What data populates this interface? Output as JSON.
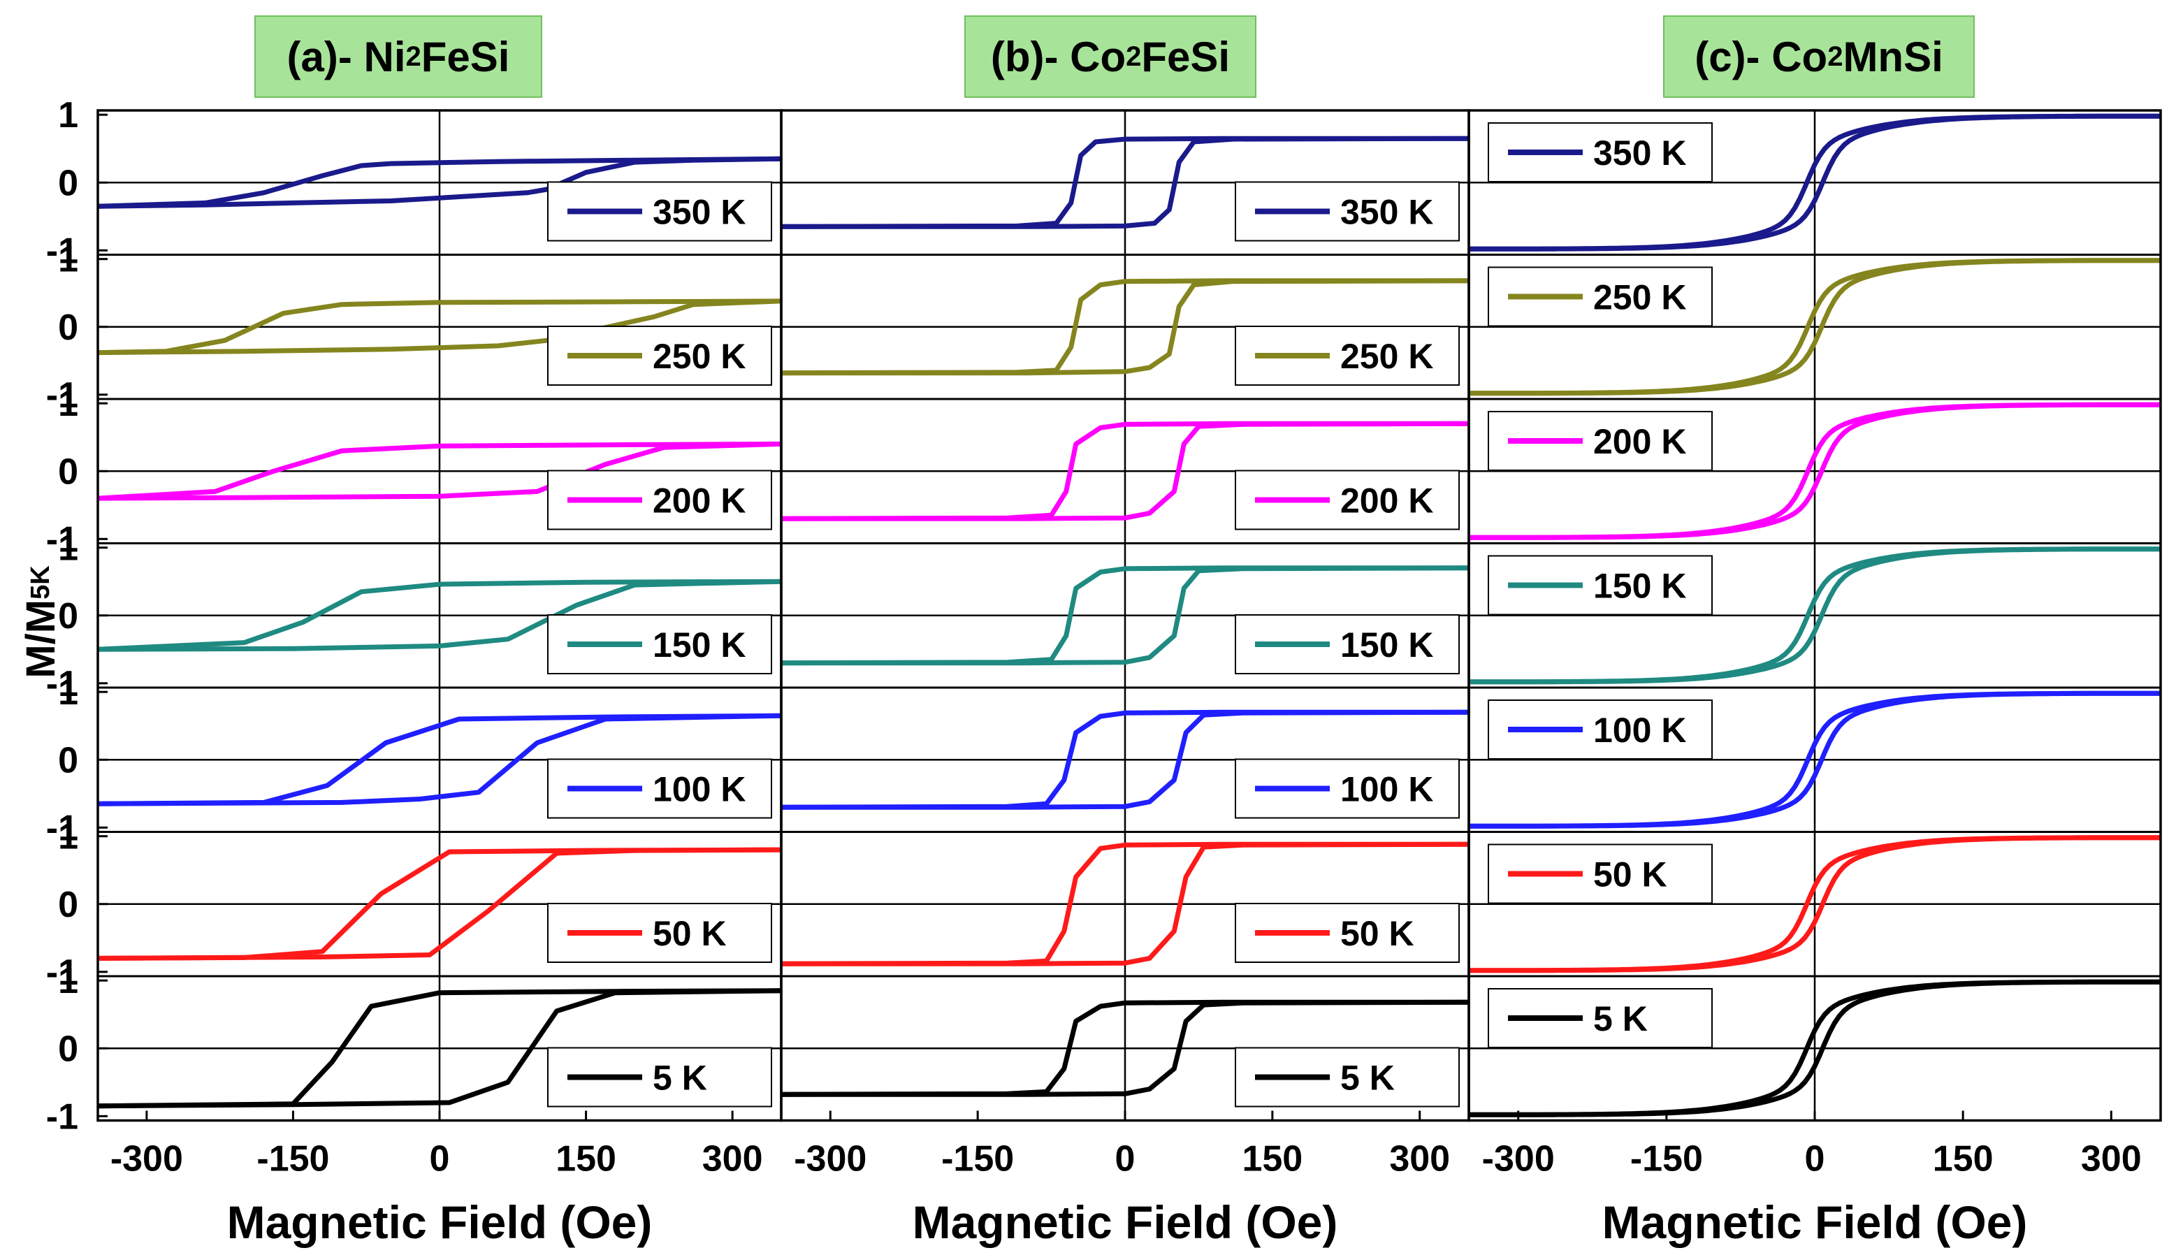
{
  "y_axis_label": "M/M",
  "y_axis_label_sub": "5K",
  "chart_data": [
    {
      "type": "line",
      "panel": "a",
      "title": "(a)- Ni",
      "title_sub": "2",
      "title_suffix": "FeSi",
      "xlabel": "Magnetic Field (Oe)",
      "xlim": [
        -350,
        350
      ],
      "x_ticks": [
        "-300",
        "-150",
        "0",
        "150",
        "300"
      ],
      "legend_placement": "bottom-right",
      "curves": [
        {
          "name": "350 K",
          "color": "#1a1a8c",
          "up": [
            [
              -350,
              -0.35
            ],
            [
              -240,
              -0.33
            ],
            [
              -150,
              -0.3
            ],
            [
              -50,
              -0.27
            ],
            [
              30,
              -0.2
            ],
            [
              90,
              -0.15
            ],
            [
              110,
              -0.1
            ],
            [
              150,
              0.15
            ],
            [
              200,
              0.3
            ],
            [
              260,
              0.33
            ],
            [
              350,
              0.35
            ]
          ],
          "down": [
            [
              350,
              0.35
            ],
            [
              200,
              0.33
            ],
            [
              60,
              0.31
            ],
            [
              -50,
              0.28
            ],
            [
              -80,
              0.25
            ],
            [
              -120,
              0.1
            ],
            [
              -180,
              -0.15
            ],
            [
              -240,
              -0.3
            ],
            [
              -350,
              -0.35
            ]
          ]
        },
        {
          "name": "250 K",
          "color": "#85851f",
          "up": [
            [
              -350,
              -0.38
            ],
            [
              -200,
              -0.36
            ],
            [
              -50,
              -0.33
            ],
            [
              60,
              -0.28
            ],
            [
              110,
              -0.2
            ],
            [
              220,
              0.15
            ],
            [
              260,
              0.33
            ],
            [
              350,
              0.38
            ]
          ],
          "down": [
            [
              350,
              0.38
            ],
            [
              200,
              0.37
            ],
            [
              0,
              0.36
            ],
            [
              -100,
              0.33
            ],
            [
              -160,
              0.2
            ],
            [
              -220,
              -0.2
            ],
            [
              -280,
              -0.36
            ],
            [
              -350,
              -0.38
            ]
          ]
        },
        {
          "name": "200 K",
          "color": "#ff00ff",
          "up": [
            [
              -350,
              -0.4
            ],
            [
              -200,
              -0.39
            ],
            [
              0,
              -0.37
            ],
            [
              100,
              -0.3
            ],
            [
              170,
              0.1
            ],
            [
              230,
              0.35
            ],
            [
              350,
              0.4
            ]
          ],
          "down": [
            [
              350,
              0.4
            ],
            [
              200,
              0.39
            ],
            [
              0,
              0.37
            ],
            [
              -100,
              0.3
            ],
            [
              -170,
              0.0
            ],
            [
              -230,
              -0.3
            ],
            [
              -350,
              -0.4
            ]
          ]
        },
        {
          "name": "150 K",
          "color": "#1f8a82",
          "up": [
            [
              -350,
              -0.5
            ],
            [
              -150,
              -0.49
            ],
            [
              0,
              -0.45
            ],
            [
              70,
              -0.35
            ],
            [
              140,
              0.15
            ],
            [
              200,
              0.45
            ],
            [
              350,
              0.5
            ]
          ],
          "down": [
            [
              350,
              0.5
            ],
            [
              150,
              0.49
            ],
            [
              0,
              0.46
            ],
            [
              -80,
              0.35
            ],
            [
              -140,
              -0.1
            ],
            [
              -200,
              -0.4
            ],
            [
              -350,
              -0.5
            ]
          ]
        },
        {
          "name": "100 K",
          "color": "#1f1fff",
          "up": [
            [
              -350,
              -0.65
            ],
            [
              -100,
              -0.63
            ],
            [
              -20,
              -0.58
            ],
            [
              40,
              -0.48
            ],
            [
              100,
              0.25
            ],
            [
              170,
              0.6
            ],
            [
              350,
              0.65
            ]
          ],
          "down": [
            [
              350,
              0.65
            ],
            [
              170,
              0.63
            ],
            [
              20,
              0.6
            ],
            [
              -55,
              0.25
            ],
            [
              -115,
              -0.38
            ],
            [
              -180,
              -0.63
            ],
            [
              -350,
              -0.65
            ]
          ]
        },
        {
          "name": "50 K",
          "color": "#ff1a1a",
          "up": [
            [
              -350,
              -0.8
            ],
            [
              -120,
              -0.78
            ],
            [
              -10,
              -0.75
            ],
            [
              50,
              -0.1
            ],
            [
              120,
              0.75
            ],
            [
              200,
              0.79
            ],
            [
              350,
              0.8
            ]
          ],
          "down": [
            [
              350,
              0.8
            ],
            [
              150,
              0.79
            ],
            [
              10,
              0.77
            ],
            [
              -60,
              0.15
            ],
            [
              -120,
              -0.7
            ],
            [
              -200,
              -0.79
            ],
            [
              -350,
              -0.8
            ]
          ]
        },
        {
          "name": "5 K",
          "color": "#000000",
          "up": [
            [
              -350,
              -0.85
            ],
            [
              -150,
              -0.83
            ],
            [
              10,
              -0.8
            ],
            [
              70,
              -0.5
            ],
            [
              120,
              0.55
            ],
            [
              180,
              0.82
            ],
            [
              350,
              0.85
            ]
          ],
          "down": [
            [
              350,
              0.85
            ],
            [
              180,
              0.84
            ],
            [
              0,
              0.82
            ],
            [
              -70,
              0.62
            ],
            [
              -110,
              -0.2
            ],
            [
              -150,
              -0.82
            ],
            [
              -350,
              -0.85
            ]
          ]
        }
      ]
    },
    {
      "type": "line",
      "panel": "b",
      "title": "(b)- Co",
      "title_sub": "2",
      "title_suffix": "FeSi",
      "xlabel": "Magnetic Field (Oe)",
      "xlim": [
        -350,
        350
      ],
      "x_ticks": [
        "-300",
        "-150",
        "0",
        "150",
        "300"
      ],
      "legend_placement": "bottom-right",
      "curves": [
        {
          "name": "350 K",
          "color": "#1a1a8c",
          "up": [
            [
              -350,
              -0.65
            ],
            [
              -100,
              -0.65
            ],
            [
              0,
              -0.64
            ],
            [
              30,
              -0.6
            ],
            [
              45,
              -0.4
            ],
            [
              55,
              0.3
            ],
            [
              70,
              0.6
            ],
            [
              110,
              0.64
            ],
            [
              350,
              0.65
            ]
          ],
          "down": [
            [
              350,
              0.65
            ],
            [
              100,
              0.65
            ],
            [
              0,
              0.64
            ],
            [
              -30,
              0.6
            ],
            [
              -45,
              0.4
            ],
            [
              -55,
              -0.3
            ],
            [
              -70,
              -0.6
            ],
            [
              -110,
              -0.64
            ],
            [
              -350,
              -0.65
            ]
          ]
        },
        {
          "name": "250 K",
          "color": "#85851f",
          "up": [
            [
              -350,
              -0.68
            ],
            [
              -100,
              -0.68
            ],
            [
              0,
              -0.66
            ],
            [
              25,
              -0.6
            ],
            [
              45,
              -0.4
            ],
            [
              55,
              0.3
            ],
            [
              70,
              0.62
            ],
            [
              110,
              0.67
            ],
            [
              350,
              0.68
            ]
          ],
          "down": [
            [
              350,
              0.68
            ],
            [
              100,
              0.68
            ],
            [
              0,
              0.67
            ],
            [
              -25,
              0.62
            ],
            [
              -45,
              0.4
            ],
            [
              -55,
              -0.3
            ],
            [
              -70,
              -0.64
            ],
            [
              -110,
              -0.67
            ],
            [
              -350,
              -0.68
            ]
          ]
        },
        {
          "name": "200 K",
          "color": "#ff00ff",
          "up": [
            [
              -350,
              -0.7
            ],
            [
              -100,
              -0.7
            ],
            [
              0,
              -0.69
            ],
            [
              25,
              -0.62
            ],
            [
              50,
              -0.3
            ],
            [
              60,
              0.4
            ],
            [
              75,
              0.66
            ],
            [
              120,
              0.69
            ],
            [
              350,
              0.7
            ]
          ],
          "down": [
            [
              350,
              0.7
            ],
            [
              100,
              0.7
            ],
            [
              0,
              0.69
            ],
            [
              -25,
              0.64
            ],
            [
              -50,
              0.4
            ],
            [
              -60,
              -0.3
            ],
            [
              -75,
              -0.65
            ],
            [
              -120,
              -0.69
            ],
            [
              -350,
              -0.7
            ]
          ]
        },
        {
          "name": "150 K",
          "color": "#1f8a82",
          "up": [
            [
              -350,
              -0.7
            ],
            [
              -100,
              -0.7
            ],
            [
              0,
              -0.69
            ],
            [
              25,
              -0.62
            ],
            [
              50,
              -0.3
            ],
            [
              60,
              0.4
            ],
            [
              75,
              0.66
            ],
            [
              120,
              0.69
            ],
            [
              350,
              0.7
            ]
          ],
          "down": [
            [
              350,
              0.7
            ],
            [
              100,
              0.7
            ],
            [
              0,
              0.69
            ],
            [
              -25,
              0.64
            ],
            [
              -50,
              0.4
            ],
            [
              -60,
              -0.3
            ],
            [
              -75,
              -0.65
            ],
            [
              -120,
              -0.69
            ],
            [
              -350,
              -0.7
            ]
          ]
        },
        {
          "name": "100 K",
          "color": "#1f1fff",
          "up": [
            [
              -350,
              -0.7
            ],
            [
              -100,
              -0.7
            ],
            [
              0,
              -0.69
            ],
            [
              25,
              -0.62
            ],
            [
              50,
              -0.3
            ],
            [
              62,
              0.4
            ],
            [
              80,
              0.66
            ],
            [
              120,
              0.69
            ],
            [
              350,
              0.7
            ]
          ],
          "down": [
            [
              350,
              0.7
            ],
            [
              100,
              0.7
            ],
            [
              0,
              0.69
            ],
            [
              -25,
              0.64
            ],
            [
              -50,
              0.4
            ],
            [
              -62,
              -0.3
            ],
            [
              -80,
              -0.65
            ],
            [
              -120,
              -0.69
            ],
            [
              -350,
              -0.7
            ]
          ]
        },
        {
          "name": "50 K",
          "color": "#ff1a1a",
          "up": [
            [
              -350,
              -0.88
            ],
            [
              -100,
              -0.88
            ],
            [
              0,
              -0.87
            ],
            [
              25,
              -0.8
            ],
            [
              50,
              -0.4
            ],
            [
              62,
              0.4
            ],
            [
              80,
              0.84
            ],
            [
              120,
              0.87
            ],
            [
              350,
              0.88
            ]
          ],
          "down": [
            [
              350,
              0.88
            ],
            [
              100,
              0.88
            ],
            [
              0,
              0.87
            ],
            [
              -25,
              0.82
            ],
            [
              -50,
              0.4
            ],
            [
              -62,
              -0.4
            ],
            [
              -80,
              -0.84
            ],
            [
              -120,
              -0.87
            ],
            [
              -350,
              -0.88
            ]
          ]
        },
        {
          "name": "5 K",
          "color": "#000000",
          "up": [
            [
              -350,
              -0.68
            ],
            [
              -100,
              -0.68
            ],
            [
              0,
              -0.67
            ],
            [
              25,
              -0.6
            ],
            [
              50,
              -0.3
            ],
            [
              62,
              0.4
            ],
            [
              80,
              0.64
            ],
            [
              120,
              0.67
            ],
            [
              350,
              0.68
            ]
          ],
          "down": [
            [
              350,
              0.68
            ],
            [
              100,
              0.68
            ],
            [
              0,
              0.67
            ],
            [
              -25,
              0.62
            ],
            [
              -50,
              0.4
            ],
            [
              -62,
              -0.3
            ],
            [
              -80,
              -0.64
            ],
            [
              -120,
              -0.67
            ],
            [
              -350,
              -0.68
            ]
          ]
        }
      ]
    },
    {
      "type": "line",
      "panel": "c",
      "title": "(c)- Co",
      "title_sub": "2",
      "title_suffix": "MnSi",
      "xlabel": "Magnetic Field (Oe)",
      "xlim": [
        -350,
        350
      ],
      "x_ticks": [
        "-300",
        "-150",
        "0",
        "150",
        "300"
      ],
      "legend_placement": "top-left",
      "curves": [
        {
          "name": "350 K",
          "color": "#1a1a8c",
          "hysteresis_offset": 8
        },
        {
          "name": "250 K",
          "color": "#85851f",
          "hysteresis_offset": 7
        },
        {
          "name": "200 K",
          "color": "#ff00ff",
          "hysteresis_offset": 7
        },
        {
          "name": "150 K",
          "color": "#1f8a82",
          "hysteresis_offset": 7
        },
        {
          "name": "100 K",
          "color": "#1f1fff",
          "hysteresis_offset": 7
        },
        {
          "name": "50 K",
          "color": "#ff1a1a",
          "hysteresis_offset": 8
        },
        {
          "name": "5 K",
          "color": "#000000",
          "hysteresis_offset": 8
        }
      ]
    }
  ],
  "row_y_ticks": [
    "1",
    "0",
    "-1"
  ]
}
